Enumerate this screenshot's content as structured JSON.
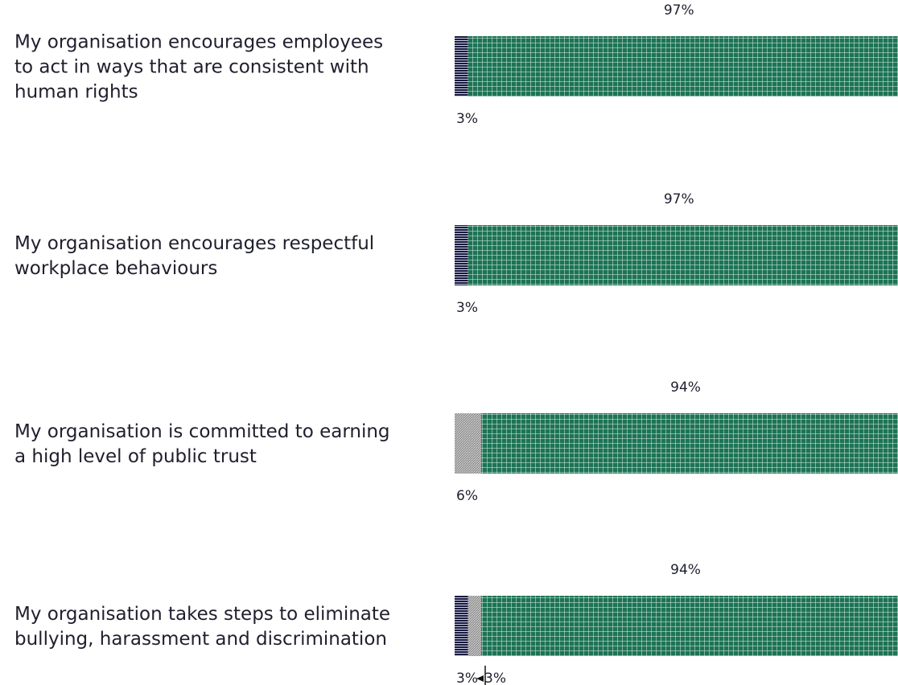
{
  "chart_data": {
    "type": "bar",
    "orientation": "horizontal",
    "stacked": true,
    "percent_scale": [
      0,
      100
    ],
    "categories": [
      "My organisation encourages employees to act in ways that are consistent with human rights",
      "My organisation encourages respectful workplace behaviours",
      "My organisation is committed to earning a high level of public trust",
      "My organisation takes steps to eliminate bullying, harassment and discrimination"
    ],
    "category_lines": [
      [
        "My organisation encourages employees",
        "to act in ways that are consistent with",
        "human rights"
      ],
      [
        "My organisation encourages respectful",
        "workplace behaviours"
      ],
      [
        "My organisation is committed to earning",
        "a high level of public trust"
      ],
      [
        "My organisation takes steps to eliminate",
        "bullying, harassment and discrimination"
      ]
    ],
    "series": [
      {
        "values": [
          3,
          3,
          0,
          3
        ],
        "labels": [
          "3%",
          "3%",
          "",
          "3%"
        ]
      },
      {
        "values": [
          0,
          0,
          6,
          3
        ],
        "labels": [
          "",
          "",
          "6%",
          "3%"
        ]
      },
      {
        "values": [
          97,
          97,
          94,
          94
        ],
        "labels": [
          "97%",
          "97%",
          "94%",
          "94%"
        ]
      }
    ],
    "colors": [
      "#1a1a3e",
      "#9a9a9a",
      "#1e7356"
    ],
    "grid": false,
    "legend": "none"
  }
}
